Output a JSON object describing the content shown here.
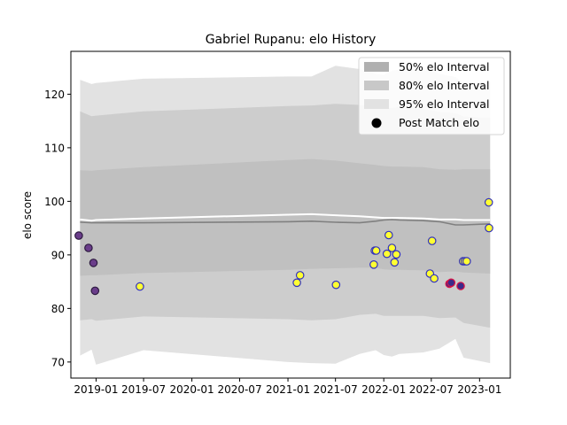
{
  "chart_data": {
    "type": "scatter",
    "title": "Gabriel Rupanu: elo History",
    "xlabel": "",
    "ylabel": "elo score",
    "xlim": [
      "2018-09-27",
      "2023-04-28"
    ],
    "ylim": [
      67,
      128
    ],
    "x_ticks": [
      "2019-01",
      "2019-07",
      "2020-01",
      "2020-07",
      "2021-01",
      "2021-07",
      "2022-01",
      "2022-07",
      "2023-01"
    ],
    "y_ticks": [
      70,
      80,
      90,
      100,
      110,
      120
    ],
    "grid": false,
    "legend_position": "top-right",
    "legend": [
      {
        "label": "50% elo Interval",
        "kind": "band",
        "color": "#b0b0b0"
      },
      {
        "label": "80% elo Interval",
        "kind": "band",
        "color": "#c8c8c8"
      },
      {
        "label": "95% elo Interval",
        "kind": "band",
        "color": "#e2e2e2"
      },
      {
        "label": "Post Match elo",
        "kind": "marker",
        "color": "#000000"
      }
    ],
    "colors": {
      "band95": "#e2e2e2",
      "band80": "#cdcdcd",
      "band50": "#c0c0c0",
      "mean_line": "#ffffff",
      "median_line": "#808080",
      "marker_fill_recent": "#ffff33",
      "marker_edge_recent": "#3333bb",
      "marker_fill_early": "#6a3d8a",
      "marker_edge_early": "#2d1a40",
      "marker_fill_loss": "#3b2a8a",
      "marker_edge_loss": "#dd1144"
    },
    "bands": {
      "dates": [
        "2018-11-01",
        "2018-12-15",
        "2019-01-01",
        "2019-07-01",
        "2021-01-01",
        "2021-04-01",
        "2021-07-01",
        "2021-10-01",
        "2021-12-01",
        "2022-01-01",
        "2022-02-01",
        "2022-03-01",
        "2022-06-01",
        "2022-08-01",
        "2022-10-01",
        "2022-11-01",
        "2023-02-10"
      ],
      "lower95": [
        71.2,
        72.3,
        69.5,
        72.2,
        70.0,
        69.8,
        69.7,
        71.5,
        72.2,
        71.3,
        71.0,
        71.5,
        71.8,
        72.5,
        74.3,
        70.8,
        69.8
      ],
      "upper95": [
        122.7,
        121.9,
        122.1,
        122.9,
        123.3,
        123.3,
        125.3,
        124.7,
        123.8,
        123.6,
        124.4,
        124.6,
        124.9,
        123.8,
        123.2,
        122.0,
        122.3
      ],
      "lower80": [
        77.8,
        78.0,
        77.7,
        78.5,
        78.0,
        77.8,
        78.0,
        78.8,
        79.0,
        78.6,
        78.6,
        78.6,
        78.6,
        78.2,
        78.3,
        77.3,
        76.4
      ],
      "upper80": [
        116.8,
        115.9,
        116.0,
        116.8,
        117.8,
        117.9,
        118.2,
        118.0,
        117.8,
        117.4,
        117.4,
        117.6,
        117.2,
        116.7,
        116.5,
        115.8,
        115.6
      ],
      "lower50": [
        86.1,
        86.2,
        86.2,
        86.6,
        87.2,
        87.4,
        87.5,
        87.6,
        87.6,
        87.3,
        87.2,
        87.2,
        87.1,
        86.8,
        86.9,
        86.7,
        86.5
      ],
      "upper50": [
        105.8,
        105.7,
        105.8,
        106.4,
        107.7,
        107.9,
        107.6,
        107.1,
        106.8,
        106.6,
        106.5,
        106.5,
        106.4,
        106.0,
        105.9,
        106.0,
        106.0
      ],
      "mean": [
        96.6,
        96.4,
        96.5,
        96.8,
        97.5,
        97.6,
        97.4,
        97.2,
        97.0,
        96.9,
        96.9,
        96.9,
        96.8,
        96.6,
        96.6,
        96.5,
        96.5
      ],
      "median": [
        96.1,
        96.0,
        96.0,
        96.0,
        96.2,
        96.3,
        96.1,
        96.0,
        96.3,
        96.5,
        96.6,
        96.5,
        96.4,
        96.2,
        95.6,
        95.6,
        95.8
      ]
    },
    "points": [
      {
        "date": "2018-10-27",
        "elo": 93.6,
        "group": "early"
      },
      {
        "date": "2018-12-03",
        "elo": 91.3,
        "group": "early"
      },
      {
        "date": "2018-12-22",
        "elo": 88.5,
        "group": "early"
      },
      {
        "date": "2018-12-28",
        "elo": 83.3,
        "group": "early"
      },
      {
        "date": "2019-06-17",
        "elo": 84.1,
        "group": "recent"
      },
      {
        "date": "2021-02-04",
        "elo": 84.8,
        "group": "recent"
      },
      {
        "date": "2021-02-16",
        "elo": 86.2,
        "group": "recent"
      },
      {
        "date": "2021-07-03",
        "elo": 84.4,
        "group": "recent"
      },
      {
        "date": "2021-11-24",
        "elo": 88.2,
        "group": "recent"
      },
      {
        "date": "2021-11-28",
        "elo": 90.8,
        "group": "recent"
      },
      {
        "date": "2021-12-03",
        "elo": 90.8,
        "group": "recent"
      },
      {
        "date": "2022-01-13",
        "elo": 90.2,
        "group": "recent"
      },
      {
        "date": "2022-01-20",
        "elo": 93.7,
        "group": "recent"
      },
      {
        "date": "2022-02-01",
        "elo": 91.3,
        "group": "recent"
      },
      {
        "date": "2022-02-11",
        "elo": 88.6,
        "group": "recent"
      },
      {
        "date": "2022-02-18",
        "elo": 90.1,
        "group": "recent"
      },
      {
        "date": "2022-06-26",
        "elo": 86.5,
        "group": "recent"
      },
      {
        "date": "2022-07-04",
        "elo": 92.6,
        "group": "recent"
      },
      {
        "date": "2022-07-12",
        "elo": 85.6,
        "group": "recent"
      },
      {
        "date": "2022-09-08",
        "elo": 84.6,
        "group": "loss"
      },
      {
        "date": "2022-09-15",
        "elo": 84.8,
        "group": "loss"
      },
      {
        "date": "2022-10-21",
        "elo": 84.2,
        "group": "loss"
      },
      {
        "date": "2022-10-30",
        "elo": 88.8,
        "group": "recent"
      },
      {
        "date": "2022-11-06",
        "elo": 88.8,
        "group": "recent"
      },
      {
        "date": "2022-11-13",
        "elo": 88.8,
        "group": "recent"
      },
      {
        "date": "2023-02-05",
        "elo": 99.8,
        "group": "recent"
      },
      {
        "date": "2023-02-06",
        "elo": 95.0,
        "group": "recent"
      }
    ]
  }
}
